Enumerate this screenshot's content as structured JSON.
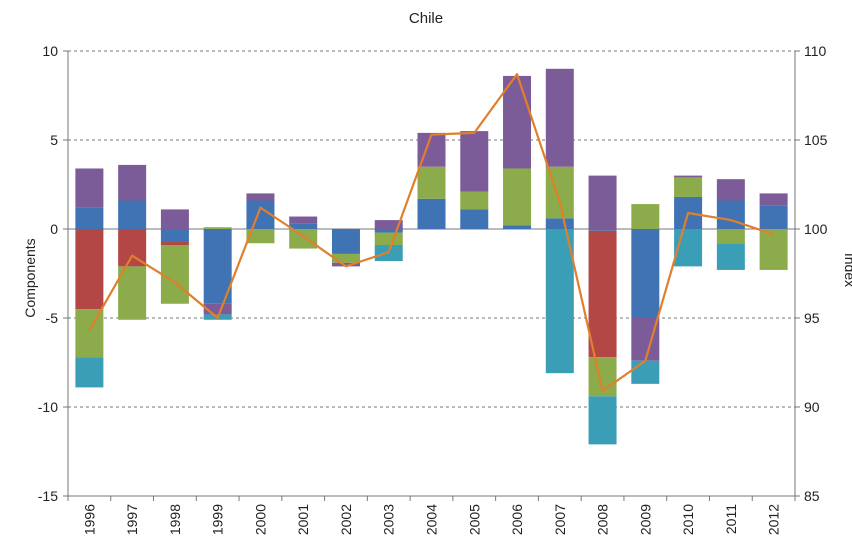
{
  "chart_data": {
    "type": "bar",
    "title": "Chile",
    "ylabel_left": "Components",
    "ylabel_right": "Index",
    "ylim_left": [
      -15,
      10
    ],
    "ylim_right": [
      85,
      110
    ],
    "yticks_left": [
      "-15",
      "-10",
      "-5",
      "0",
      "5",
      "10"
    ],
    "yticks_right": [
      "85",
      "90",
      "95",
      "100",
      "105",
      "110"
    ],
    "grid": "dashed horizontal",
    "categories": [
      "1996",
      "1997",
      "1998",
      "1999",
      "2000",
      "2001",
      "2002",
      "2003",
      "2004",
      "2005",
      "2006",
      "2007",
      "2008",
      "2009",
      "2010",
      "2011",
      "2012"
    ],
    "series": [
      {
        "color": "#3f73b4",
        "values": [
          1.2,
          1.6,
          -0.7,
          -4.2,
          1.6,
          0.3,
          -1.4,
          -0.2,
          1.7,
          1.1,
          0.2,
          0.6,
          -0.1,
          -5.0,
          1.8,
          1.6,
          1.3
        ]
      },
      {
        "color": "#b24746",
        "values": [
          -4.5,
          -2.1,
          -0.2,
          0.0,
          0.0,
          0.0,
          0.0,
          0.0,
          0.0,
          0.0,
          0.0,
          0.0,
          -7.1,
          0.0,
          0.0,
          0.0,
          0.0
        ]
      },
      {
        "color": "#8cab4a",
        "values": [
          -2.7,
          -3.0,
          -3.3,
          0.1,
          -0.8,
          -1.1,
          -0.5,
          -0.7,
          1.8,
          1.0,
          3.2,
          2.9,
          -2.2,
          1.4,
          1.1,
          -0.8,
          -2.3
        ]
      },
      {
        "color": "#7b5c98",
        "values": [
          2.2,
          2.0,
          1.1,
          -0.6,
          0.4,
          0.4,
          -0.2,
          0.5,
          1.9,
          3.4,
          5.2,
          5.5,
          3.0,
          -2.4,
          0.1,
          1.2,
          0.7
        ]
      },
      {
        "color": "#3a9fb6",
        "values": [
          -1.7,
          0.0,
          0.0,
          -0.3,
          0.0,
          0.0,
          0.0,
          -0.9,
          0.0,
          0.0,
          0.0,
          -8.1,
          -2.7,
          -1.3,
          -2.1,
          -1.5,
          0.0
        ]
      }
    ],
    "line": {
      "color": "#e07f2c",
      "axis": "right",
      "values": [
        94.3,
        98.5,
        97.0,
        95.0,
        101.2,
        99.6,
        97.9,
        98.7,
        105.3,
        105.4,
        108.7,
        101.5,
        90.9,
        92.6,
        100.9,
        100.5,
        99.7
      ]
    }
  }
}
